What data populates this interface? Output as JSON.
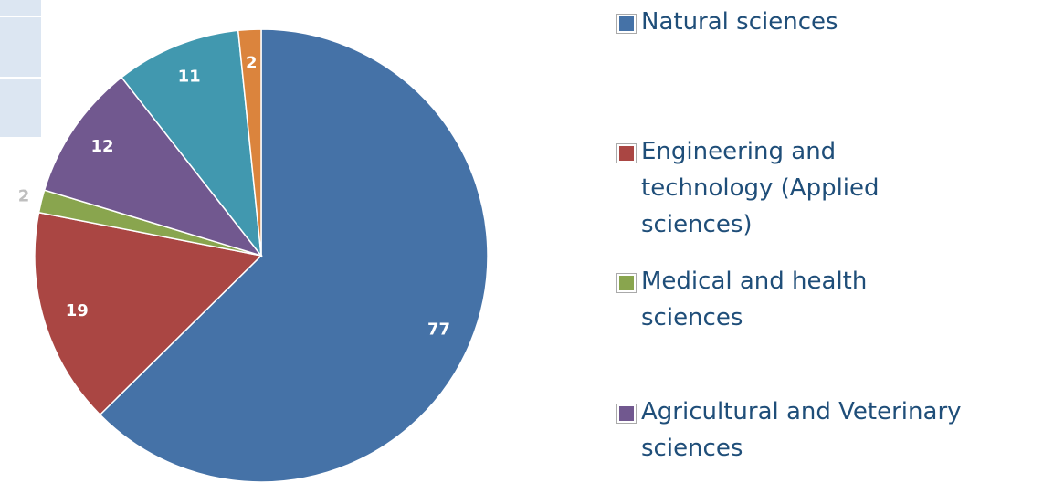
{
  "chart_data": {
    "type": "pie",
    "categories": [
      "Natural sciences",
      "Engineering and technology (Applied sciences)",
      "Medical and health sciences",
      "Agricultural and Veterinary sciences",
      null,
      null
    ],
    "values": [
      77,
      19,
      2,
      12,
      11,
      2
    ],
    "colors": [
      "#4572a7",
      "#aa4643",
      "#89a54e",
      "#71588f",
      "#4198af",
      "#db843d"
    ],
    "start_angle": 0,
    "direction": "clockwise",
    "legend": "right"
  }
}
